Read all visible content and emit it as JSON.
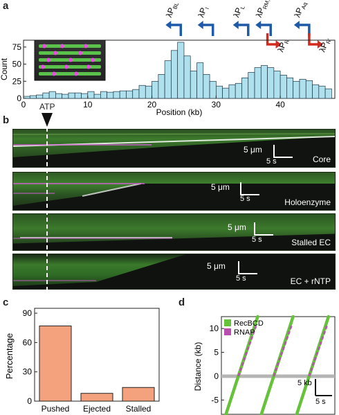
{
  "panels": {
    "a": "a",
    "b": "b",
    "c": "c",
    "d": "d"
  },
  "panel_a": {
    "promoters": [
      {
        "label": "λP",
        "sub": "BL",
        "kb": 24.5,
        "dir": "left",
        "color": "#1f5aa8"
      },
      {
        "label": "λP",
        "sub": "I",
        "kb": 29.5,
        "dir": "left",
        "color": "#1f5aa8"
      },
      {
        "label": "λP",
        "sub": "L",
        "kb": 35,
        "dir": "left",
        "color": "#1f5aa8"
      },
      {
        "label": "λP",
        "sub": "RM,RE",
        "kb": 38.5,
        "dir": "left",
        "color": "#1f5aa8"
      },
      {
        "label": "λP",
        "sub": "Aq",
        "kb": 44.5,
        "dir": "left",
        "color": "#1f5aa8"
      },
      {
        "label": "λP",
        "sub": "R",
        "kb": 38,
        "dir": "right",
        "color": "#d42a1e"
      },
      {
        "label": "λP",
        "sub": "R'",
        "kb": 44.5,
        "dir": "right",
        "color": "#d42a1e"
      }
    ]
  },
  "panel_b": {
    "atp_label": "ATP",
    "kymographs": [
      {
        "label": "Core",
        "scale_um": "5 μm",
        "scale_s": "5 s"
      },
      {
        "label": "Holoenzyme",
        "scale_um": "5 μm",
        "scale_s": "5 s"
      },
      {
        "label": "Stalled EC",
        "scale_um": "5 μm",
        "scale_s": "5 s"
      },
      {
        "label": "EC + rNTP",
        "scale_um": "5 μm",
        "scale_s": "5 s"
      }
    ]
  },
  "panel_d": {
    "legend": [
      "RecBCD",
      "RNAP"
    ],
    "scale_kb": "5 kb",
    "scale_s": "5 s"
  },
  "colors": {
    "bar_a": "#aee0ee",
    "bar_c": "#f4a27e",
    "recbcd": "#66c23a",
    "rnap": "#b84fb0",
    "grey_line": "#b5b5b5"
  },
  "chart_data": [
    {
      "type": "bar",
      "title": "",
      "xlabel": "Position (kb)",
      "ylabel": "Count",
      "xlim": [
        0,
        48.5
      ],
      "ylim": [
        0,
        85
      ],
      "xticks": [
        0,
        10,
        20,
        30,
        40
      ],
      "yticks": [
        0,
        25,
        50,
        75
      ],
      "bin_width_kb": 1,
      "x": [
        0.5,
        1.5,
        2.5,
        3.5,
        4.5,
        5.5,
        6.5,
        7.5,
        8.5,
        9.5,
        10.5,
        11.5,
        12.5,
        13.5,
        14.5,
        15.5,
        16.5,
        17.5,
        18.5,
        19.5,
        20.5,
        21.5,
        22.5,
        23.5,
        24.5,
        25.5,
        26.5,
        27.5,
        28.5,
        29.5,
        30.5,
        31.5,
        32.5,
        33.5,
        34.5,
        35.5,
        36.5,
        37.5,
        38.5,
        39.5,
        40.5,
        41.5,
        42.5,
        43.5,
        44.5,
        45.5,
        46.5,
        47.5
      ],
      "values": [
        3,
        4,
        5,
        8,
        10,
        7,
        6,
        8,
        8,
        7,
        10,
        6,
        10,
        9,
        10,
        11,
        11,
        13,
        19,
        18,
        25,
        35,
        55,
        70,
        82,
        62,
        40,
        52,
        35,
        25,
        18,
        15,
        20,
        22,
        30,
        38,
        45,
        48,
        45,
        40,
        34,
        30,
        25,
        28,
        26,
        20,
        18,
        14
      ]
    },
    {
      "type": "bar",
      "title": "",
      "xlabel": "",
      "ylabel": "Percentage",
      "ylim": [
        0,
        95
      ],
      "yticks": [
        0,
        30,
        60,
        90
      ],
      "categories": [
        "Pushed",
        "Ejected",
        "Stalled"
      ],
      "values": [
        77,
        8,
        14
      ]
    },
    {
      "type": "line",
      "title": "",
      "xlabel": "",
      "ylabel": "Distance (kb)",
      "ylim": [
        -8,
        12.5
      ],
      "yticks": [
        -5,
        0,
        5,
        10
      ],
      "series": [
        {
          "name": "RecBCD",
          "x": [
            0,
            7
          ],
          "y": [
            -8,
            12.5
          ]
        },
        {
          "name": "RecBCD",
          "x": [
            7.8,
            14.8
          ],
          "y": [
            -8,
            12.5
          ]
        },
        {
          "name": "RecBCD",
          "x": [
            15.6,
            22.6
          ],
          "y": [
            -8,
            12.5
          ]
        }
      ]
    }
  ]
}
